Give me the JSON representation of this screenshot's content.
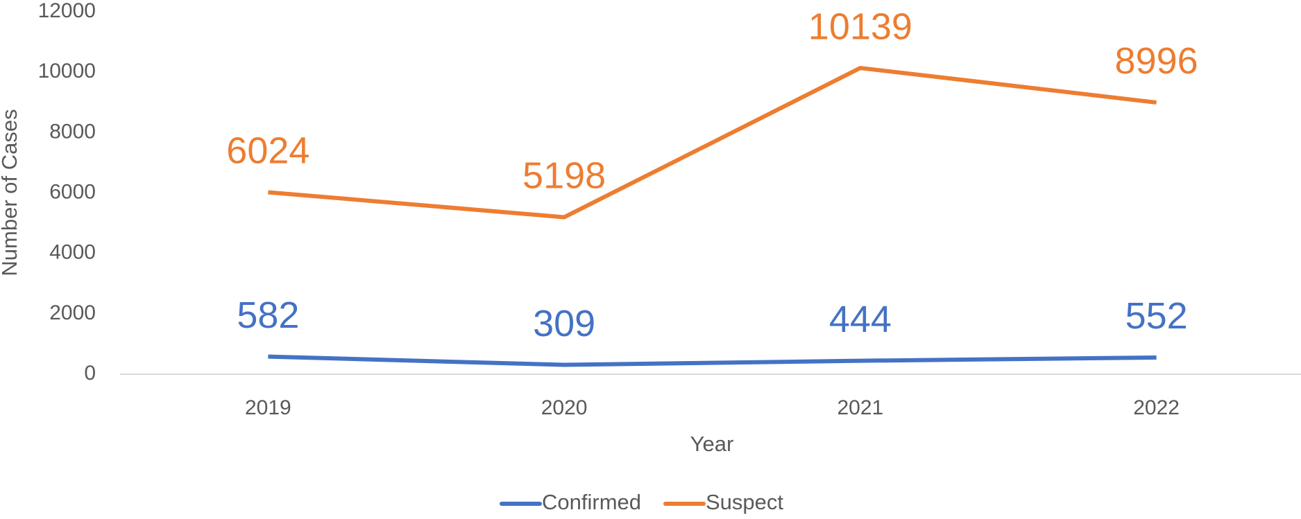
{
  "chart_data": {
    "type": "line",
    "xlabel": "Year",
    "ylabel": "Number of Cases",
    "categories": [
      "2019",
      "2020",
      "2021",
      "2022"
    ],
    "series": [
      {
        "name": "Confirmed",
        "color": "#4472c4",
        "values": [
          582,
          309,
          444,
          552
        ]
      },
      {
        "name": "Suspect",
        "color": "#ed7d31",
        "values": [
          6024,
          5198,
          10139,
          8996
        ]
      }
    ],
    "ylim": [
      0,
      12000
    ],
    "yticks": [
      0,
      2000,
      4000,
      6000,
      8000,
      10000,
      12000
    ],
    "grid": false,
    "legend": "bottom"
  }
}
